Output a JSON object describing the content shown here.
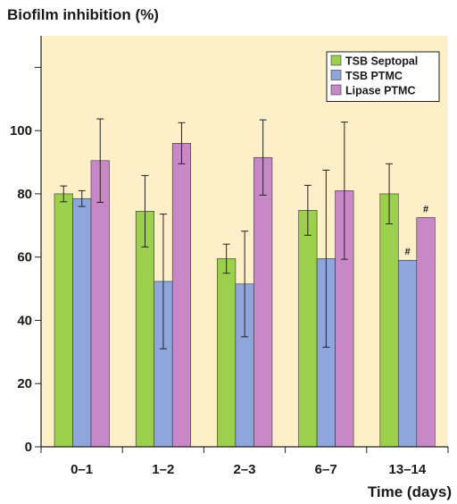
{
  "chart_data": {
    "type": "bar",
    "ylabel": "Biofilm inhibition (%)",
    "xlabel": "Time (days)",
    "categories": [
      "0–1",
      "1–2",
      "2–3",
      "6–7",
      "13–14"
    ],
    "ylim": [
      0,
      130
    ],
    "yticks": [
      0,
      20,
      40,
      60,
      80,
      100
    ],
    "legend_position": "top-right",
    "background_color": "#fdefc8",
    "series": [
      {
        "name": "TSB Septopal",
        "color": "#9ccf4b",
        "values": [
          80,
          74.5,
          59.5,
          74.8,
          80
        ],
        "errors": [
          2.5,
          11.3,
          4.6,
          7.9,
          9.5
        ]
      },
      {
        "name": "TSB PTMC",
        "color": "#8ea6dc",
        "values": [
          78.5,
          52.3,
          51.5,
          59.5,
          59
        ],
        "errors": [
          2.5,
          21.3,
          16.7,
          28,
          0
        ]
      },
      {
        "name": "Lipase PTMC",
        "color": "#c888c8",
        "values": [
          90.5,
          96,
          91.5,
          81,
          72.5
        ],
        "errors": [
          13.2,
          6.5,
          11.9,
          21.7,
          0
        ]
      }
    ],
    "annotations": [
      {
        "category": "13–14",
        "series": "TSB PTMC",
        "text": "#"
      },
      {
        "category": "13–14",
        "series": "Lipase PTMC",
        "text": "#"
      }
    ]
  }
}
